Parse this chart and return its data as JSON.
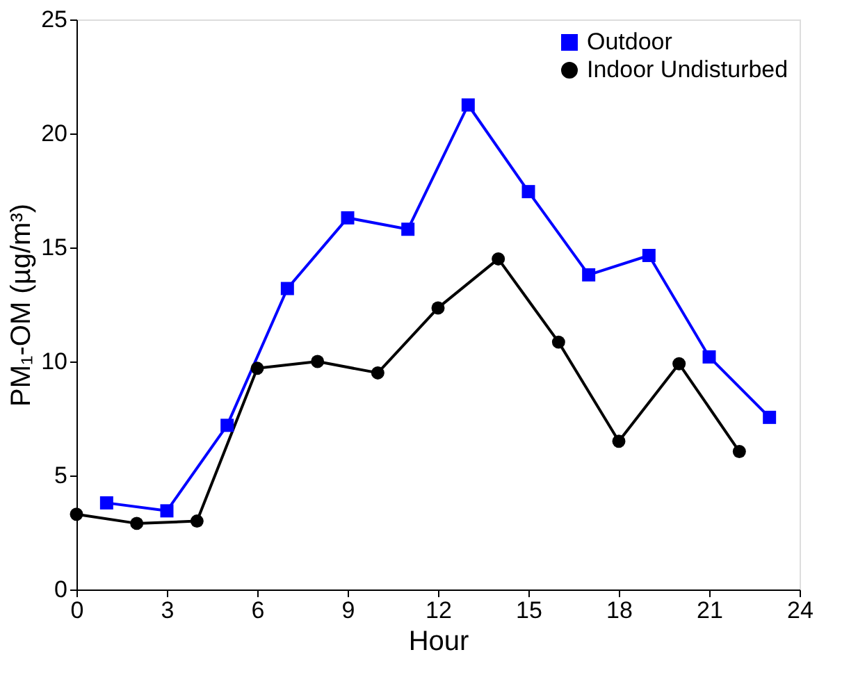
{
  "chart_data": {
    "type": "line",
    "xlabel": "Hour",
    "ylabel": "PM₁-OM (µg/m³)",
    "xlim": [
      0,
      24
    ],
    "xticks": [
      0,
      3,
      6,
      9,
      12,
      15,
      18,
      21,
      24
    ],
    "ylim": [
      0,
      25
    ],
    "yticks": [
      0,
      5,
      10,
      15,
      20,
      25
    ],
    "grid": false,
    "legend": "top right",
    "line_style": "solid",
    "series": [
      {
        "name": "Outdoor",
        "color": "#0000ff",
        "marker": "square",
        "x": [
          1,
          3,
          5,
          7,
          9,
          11,
          13,
          15,
          17,
          19,
          21,
          23
        ],
        "values": [
          3.8,
          3.45,
          7.2,
          13.2,
          16.3,
          15.8,
          21.25,
          17.45,
          13.8,
          14.65,
          10.2,
          7.55
        ]
      },
      {
        "name": "Indoor Undisturbed",
        "color": "#000000",
        "marker": "circle",
        "x": [
          0,
          2,
          4,
          6,
          8,
          10,
          12,
          14,
          16,
          18,
          20,
          22
        ],
        "values": [
          3.3,
          2.9,
          3.0,
          9.7,
          10.0,
          9.5,
          12.35,
          14.5,
          10.85,
          6.5,
          9.9,
          6.05
        ]
      }
    ]
  }
}
